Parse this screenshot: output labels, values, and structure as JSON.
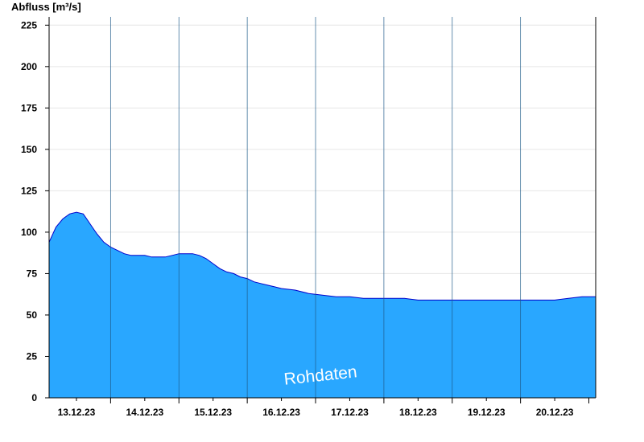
{
  "chart_data": {
    "type": "area",
    "ylabel": "Abfluss [m³/s]",
    "ylim": [
      0,
      230
    ],
    "y_ticks": [
      0,
      25,
      50,
      75,
      100,
      125,
      150,
      175,
      200,
      225
    ],
    "x_ticks": [
      "13.12.23",
      "14.12.23",
      "15.12.23",
      "16.12.23",
      "17.12.23",
      "18.12.23",
      "19.12.23",
      "20.12.23"
    ],
    "xlim_days": [
      -0.4,
      7.6
    ],
    "watermark": "Rohdaten",
    "grid": "horizontal",
    "fill_color": "#29a7ff",
    "line_color": "#0000cc",
    "series": [
      {
        "x": [
          -0.4,
          -0.3,
          -0.2,
          -0.1,
          0.0,
          0.1,
          0.15,
          0.2,
          0.3,
          0.4,
          0.5,
          0.6,
          0.7,
          0.8,
          0.9,
          1.0,
          1.1,
          1.2,
          1.3,
          1.4,
          1.5,
          1.6,
          1.7,
          1.8,
          1.9,
          2.0,
          2.1,
          2.2,
          2.3,
          2.4,
          2.5,
          2.6,
          2.7,
          2.8,
          2.9,
          3.0,
          3.2,
          3.4,
          3.6,
          3.8,
          4.0,
          4.2,
          4.4,
          4.6,
          4.8,
          5.0,
          5.2,
          5.4,
          5.6,
          5.8,
          6.0,
          6.2,
          6.4,
          6.6,
          6.8,
          7.0,
          7.2,
          7.4,
          7.6
        ],
        "y": [
          94,
          103,
          108,
          111,
          112,
          111,
          108,
          105,
          99,
          94,
          91,
          89,
          87,
          86,
          86,
          86,
          85,
          85,
          85,
          86,
          87,
          87,
          87,
          86,
          84,
          81,
          78,
          76,
          75,
          73,
          72,
          70,
          69,
          68,
          67,
          66,
          65,
          63,
          62,
          61,
          61,
          60,
          60,
          60,
          60,
          59,
          59,
          59,
          59,
          59,
          59,
          59,
          59,
          59,
          59,
          59,
          60,
          61,
          61
        ]
      }
    ]
  }
}
